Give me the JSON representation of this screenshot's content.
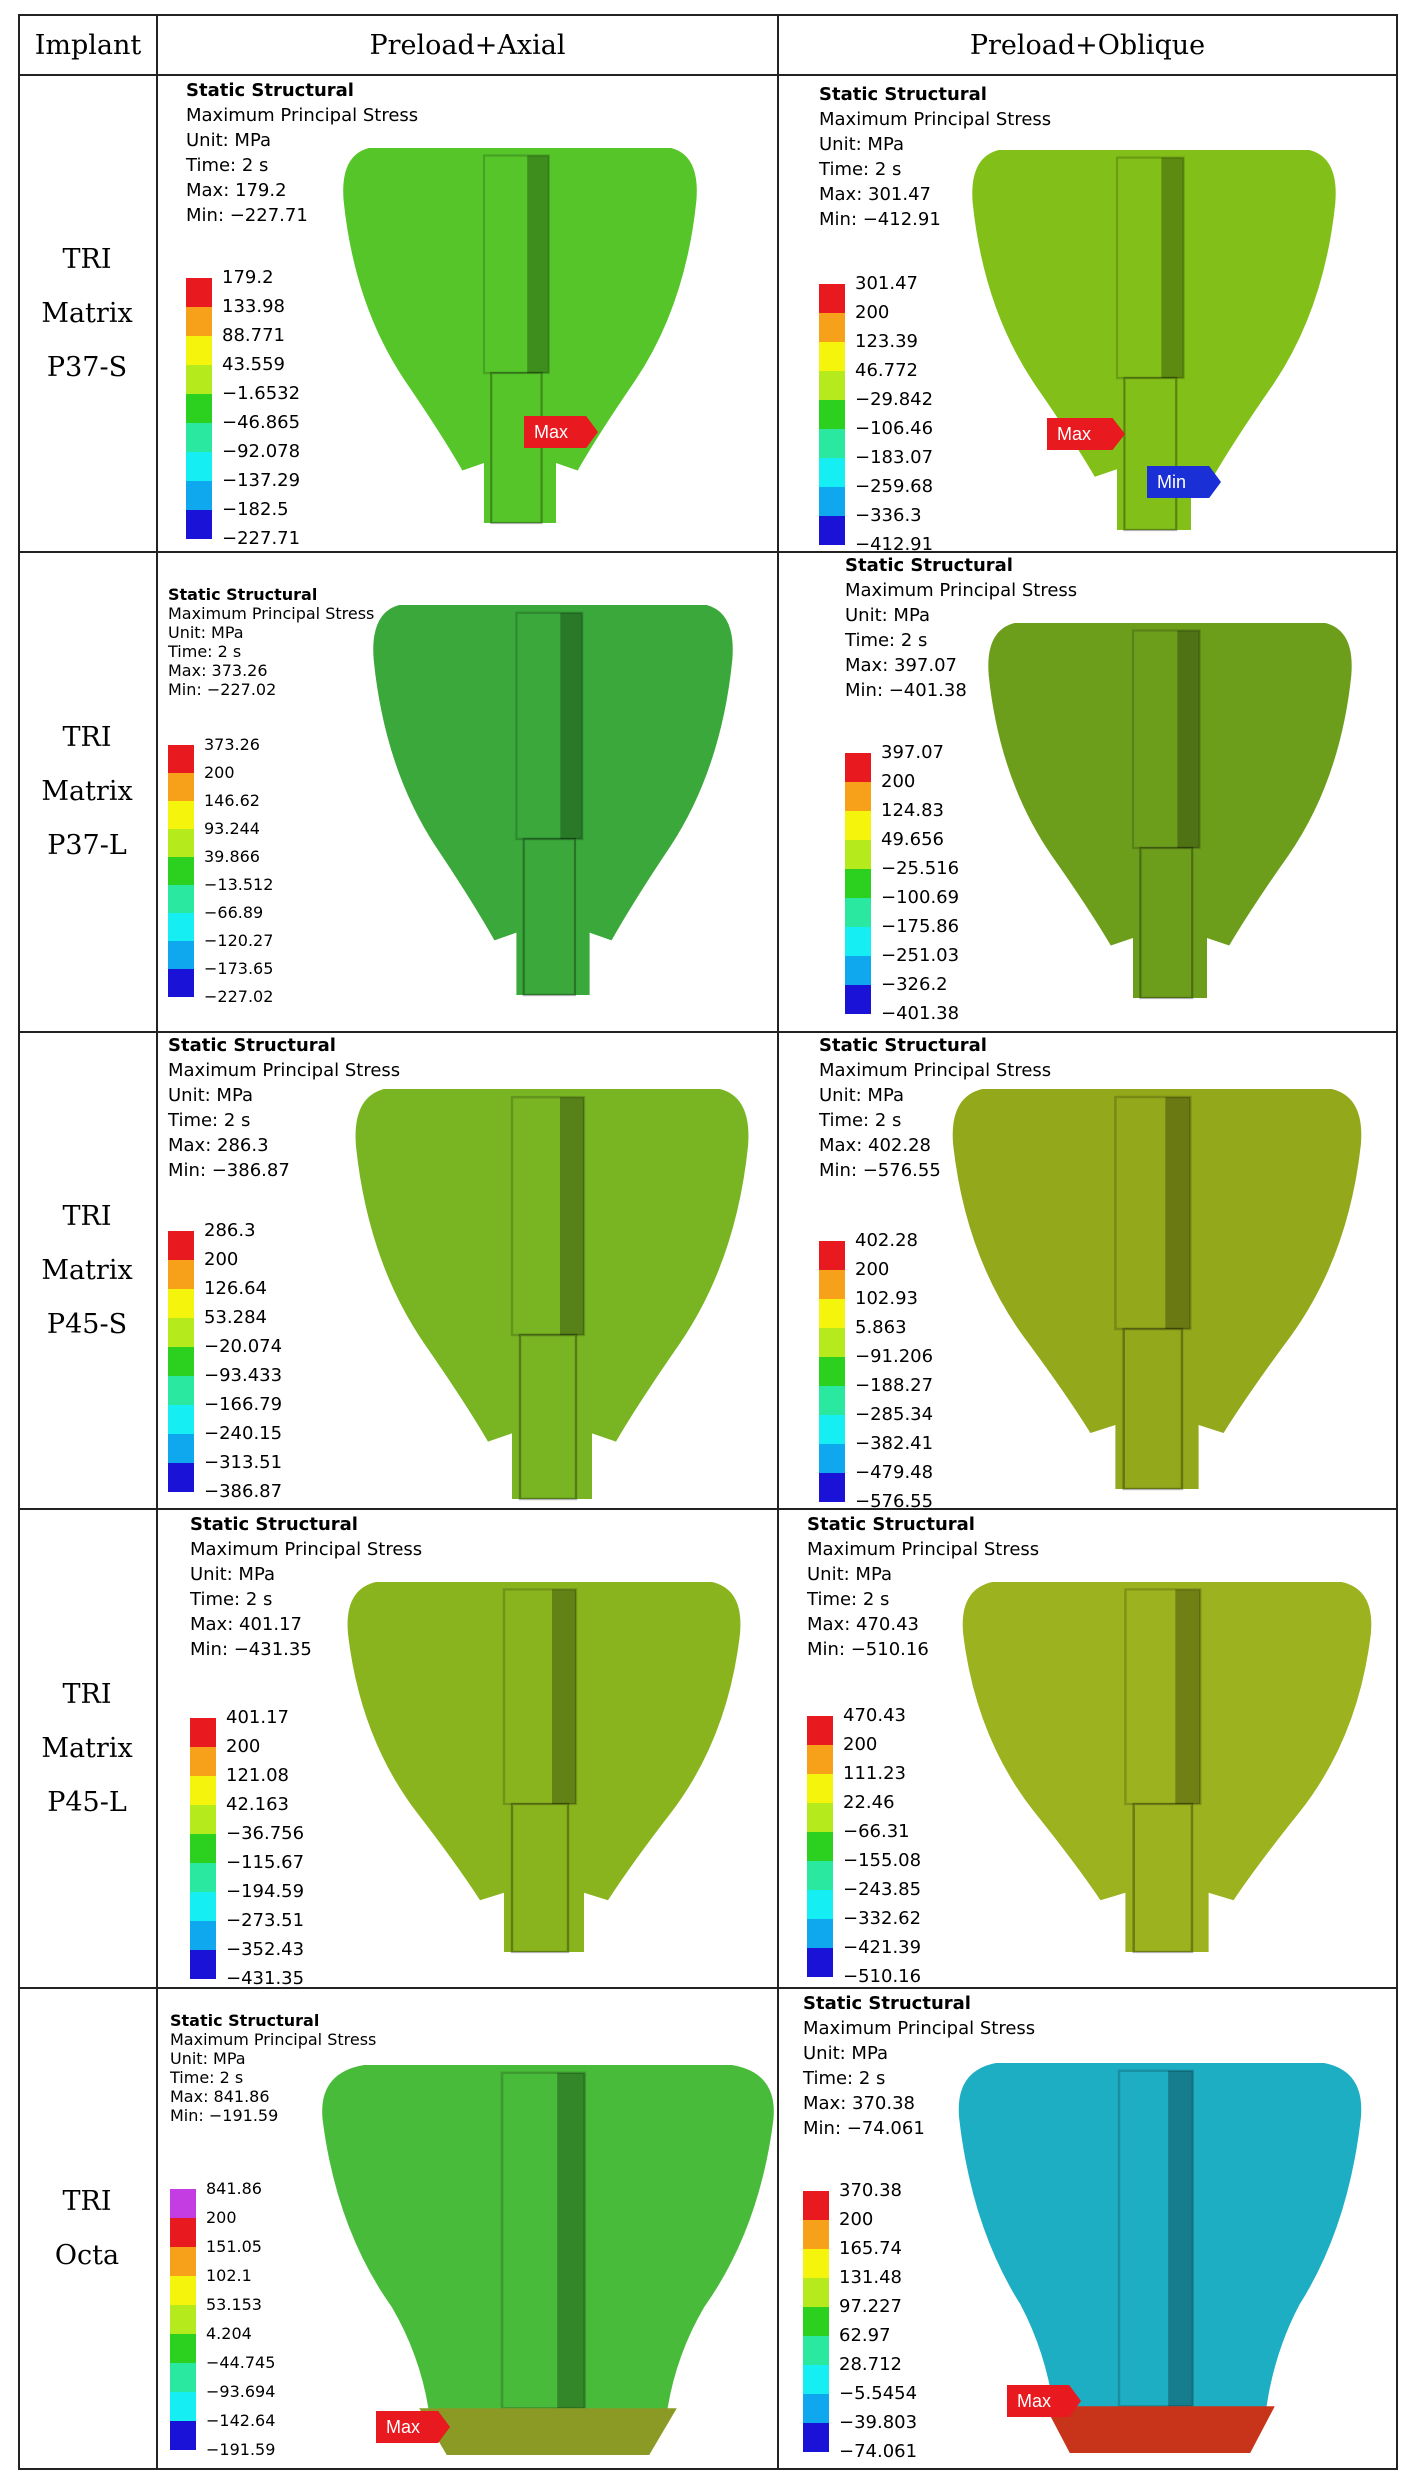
{
  "columns": {
    "implant": "Implant",
    "axial": "Preload+Axial",
    "oblique": "Preload+Oblique"
  },
  "rows": [
    {
      "label": [
        "TRI",
        "Matrix",
        "P37-S"
      ],
      "axial": {
        "title": "Static Structural",
        "subtitle": "Maximum Principal Stress",
        "unit": "Unit: MPa",
        "time": "Time: 2 s",
        "max": "Max: 179.2",
        "min": "Min: −227.71",
        "legend": [
          "179.2",
          "133.98",
          "88.771",
          "43.559",
          "−1.6532",
          "−46.865",
          "−92.078",
          "−137.29",
          "−182.5",
          "−227.71"
        ],
        "markers": [
          {
            "label": "Max",
            "color": "#e8191f"
          }
        ]
      },
      "oblique": {
        "title": "Static Structural",
        "subtitle": "Maximum Principal Stress",
        "unit": "Unit: MPa",
        "time": "Time: 2 s",
        "max": "Max: 301.47",
        "min": "Min: −412.91",
        "legend": [
          "301.47",
          "200",
          "123.39",
          "46.772",
          "−29.842",
          "−106.46",
          "−183.07",
          "−259.68",
          "−336.3",
          "−412.91"
        ],
        "markers": [
          {
            "label": "Max",
            "color": "#e8191f"
          },
          {
            "label": "Min",
            "color": "#1a2fd6"
          }
        ]
      }
    },
    {
      "label": [
        "TRI",
        "Matrix",
        "P37-L"
      ],
      "axial": {
        "title": "Static Structural",
        "subtitle": "Maximum Principal Stress",
        "unit": "Unit: MPa",
        "time": "Time: 2 s",
        "max": "Max: 373.26",
        "min": "Min: −227.02",
        "legend": [
          "373.26",
          "200",
          "146.62",
          "93.244",
          "39.866",
          "−13.512",
          "−66.89",
          "−120.27",
          "−173.65",
          "−227.02"
        ],
        "markers": []
      },
      "oblique": {
        "title": "Static Structural",
        "subtitle": "Maximum Principal Stress",
        "unit": "Unit: MPa",
        "time": "Time: 2 s",
        "max": "Max: 397.07",
        "min": "Min: −401.38",
        "legend": [
          "397.07",
          "200",
          "124.83",
          "49.656",
          "−25.516",
          "−100.69",
          "−175.86",
          "−251.03",
          "−326.2",
          "−401.38"
        ],
        "markers": []
      }
    },
    {
      "label": [
        "TRI",
        "Matrix",
        "P45-S"
      ],
      "axial": {
        "title": "Static Structural",
        "subtitle": "Maximum Principal Stress",
        "unit": "Unit: MPa",
        "time": "Time: 2 s",
        "max": "Max: 286.3",
        "min": "Min: −386.87",
        "legend": [
          "286.3",
          "200",
          "126.64",
          "53.284",
          "−20.074",
          "−93.433",
          "−166.79",
          "−240.15",
          "−313.51",
          "−386.87"
        ],
        "markers": []
      },
      "oblique": {
        "title": "Static Structural",
        "subtitle": "Maximum Principal Stress",
        "unit": "Unit: MPa",
        "time": "Time: 2 s",
        "max": "Max: 402.28",
        "min": "Min: −576.55",
        "legend": [
          "402.28",
          "200",
          "102.93",
          "5.863",
          "−91.206",
          "−188.27",
          "−285.34",
          "−382.41",
          "−479.48",
          "−576.55"
        ],
        "markers": []
      }
    },
    {
      "label": [
        "TRI",
        "Matrix",
        "P45-L"
      ],
      "axial": {
        "title": "Static Structural",
        "subtitle": "Maximum Principal Stress",
        "unit": "Unit: MPa",
        "time": "Time: 2 s",
        "max": "Max: 401.17",
        "min": "Min: −431.35",
        "legend": [
          "401.17",
          "200",
          "121.08",
          "42.163",
          "−36.756",
          "−115.67",
          "−194.59",
          "−273.51",
          "−352.43",
          "−431.35"
        ],
        "markers": []
      },
      "oblique": {
        "title": "Static Structural",
        "subtitle": "Maximum Principal Stress",
        "unit": "Unit: MPa",
        "time": "Time: 2 s",
        "max": "Max: 470.43",
        "min": "Min: −510.16",
        "legend": [
          "470.43",
          "200",
          "111.23",
          "22.46",
          "−66.31",
          "−155.08",
          "−243.85",
          "−332.62",
          "−421.39",
          "−510.16"
        ],
        "markers": []
      }
    },
    {
      "label": [
        "TRI",
        "Octa"
      ],
      "axial": {
        "title": "Static Structural",
        "subtitle": "Maximum Principal Stress",
        "unit": "Unit: MPa",
        "time": "Time: 2 s",
        "max": "Max: 841.86",
        "min": "Min: −191.59",
        "legend": [
          "841.86",
          "200",
          "151.05",
          "102.1",
          "53.153",
          "4.204",
          "−44.745",
          "−93.694",
          "−142.64",
          "−191.59"
        ],
        "markers": [
          {
            "label": "Max",
            "color": "#e8191f"
          }
        ]
      },
      "oblique": {
        "title": "Static Structural",
        "subtitle": "Maximum Principal Stress",
        "unit": "Unit: MPa",
        "time": "Time: 2 s",
        "max": "Max: 370.38",
        "min": "Min: −74.061",
        "legend": [
          "370.38",
          "200",
          "165.74",
          "131.48",
          "97.227",
          "62.97",
          "28.712",
          "−5.5454",
          "−39.803",
          "−74.061"
        ],
        "markers": [
          {
            "label": "Max",
            "color": "#e8191f"
          }
        ]
      }
    }
  ],
  "scale_colors": {
    "default": [
      "#e8191f",
      "#f7a11a",
      "#f4f40c",
      "#b5ea1c",
      "#2bd11e",
      "#2be8a0",
      "#15eef2",
      "#0fa8ee",
      "#1a5ef0",
      "#1a12d6"
    ],
    "octa_axial": [
      "#c43de2",
      "#e8191f",
      "#f7a11a",
      "#f4f40c",
      "#b5ea1c",
      "#2bd11e",
      "#2be8a0",
      "#15eef2",
      "#0fa8ee",
      "#1a12d6"
    ]
  },
  "model_colors": {
    "p37s_axial": "#56c52a",
    "p37s_oblique": "#82bf18",
    "p37l_axial": "#3aa83a",
    "p37l_oblique": "#6c9e1c",
    "p45s_axial": "#79b423",
    "p45s_oblique": "#93a81a",
    "p45l_axial": "#8ab41e",
    "p45l_oblique": "#9cb21e",
    "octa_axial": "#49bb3a",
    "octa_oblique": "#1eaec4"
  }
}
